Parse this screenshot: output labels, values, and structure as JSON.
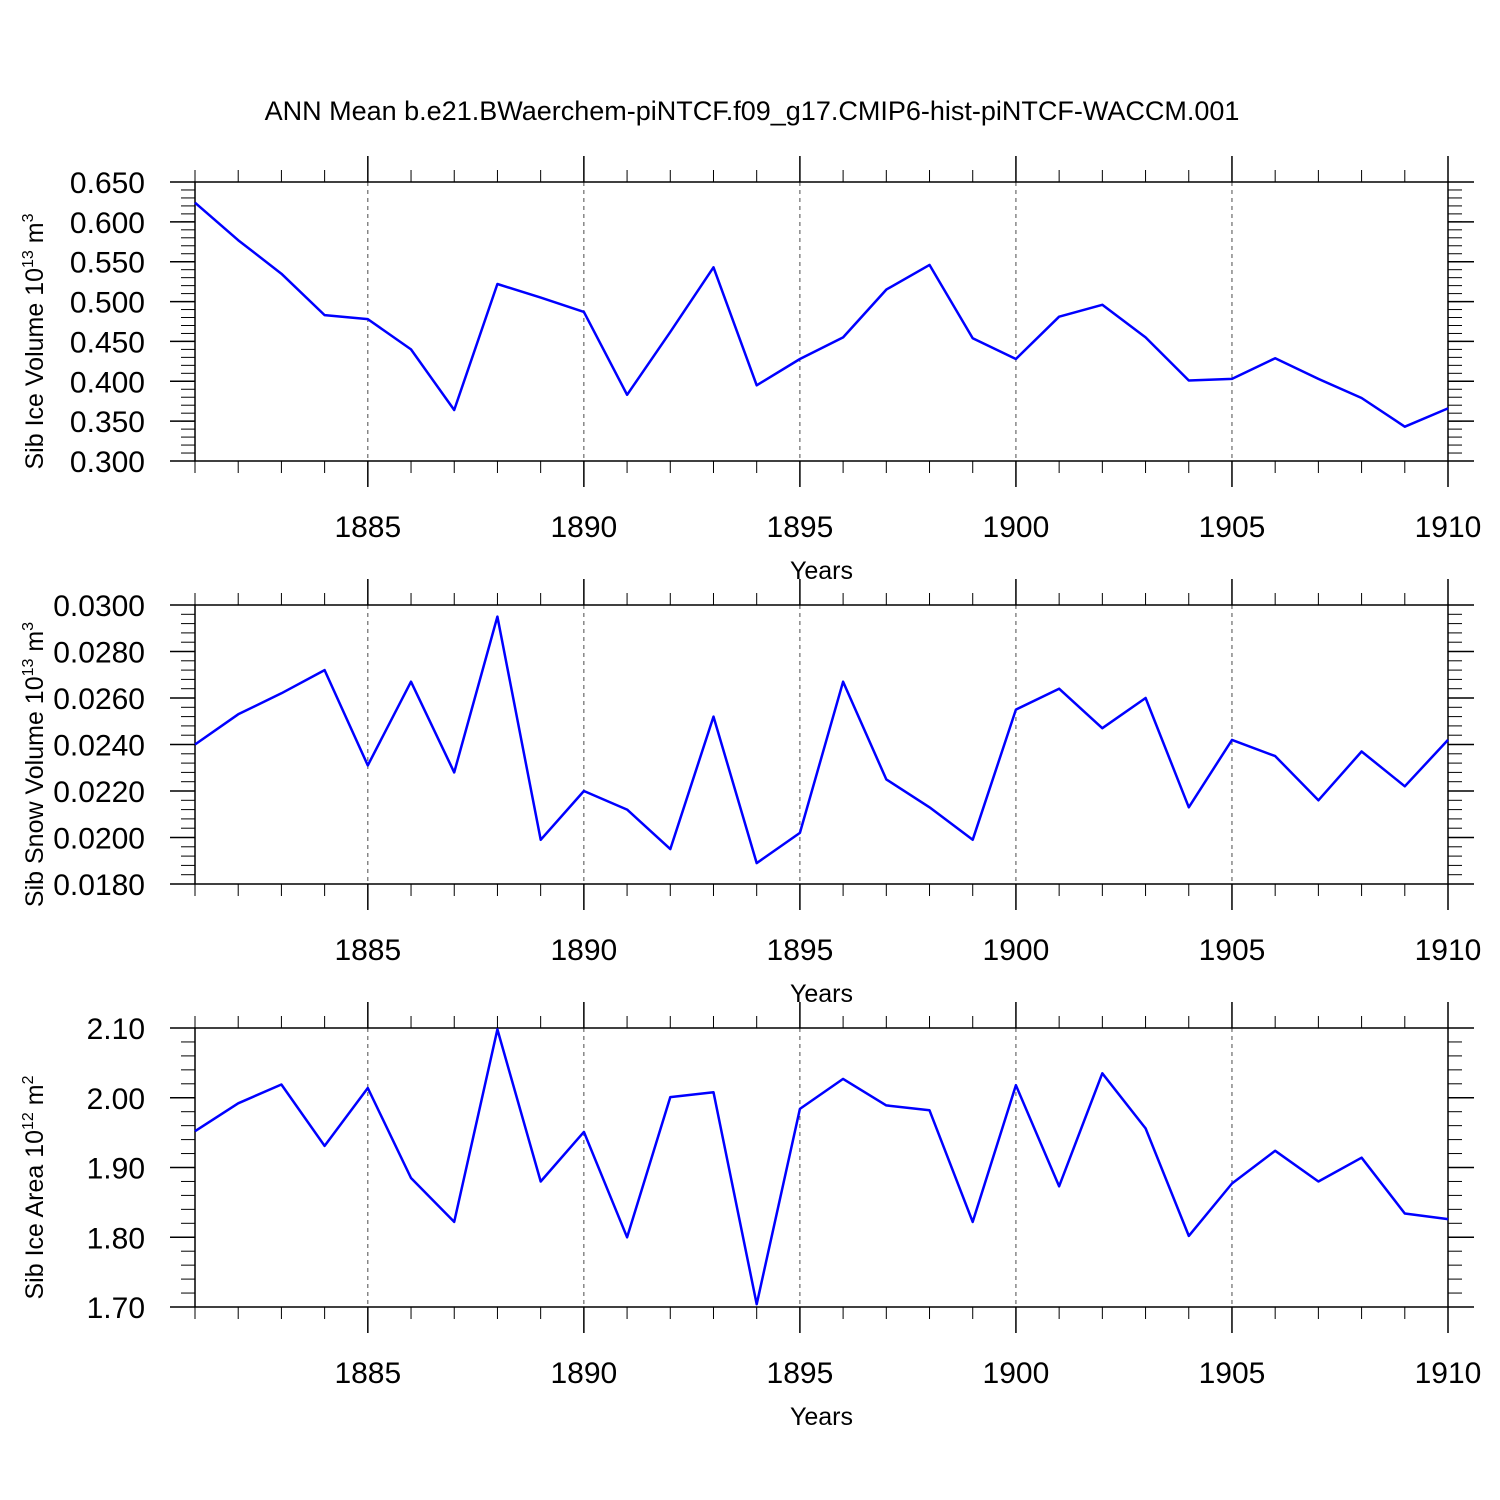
{
  "title": "ANN Mean b.e21.BWaerchem-piNTCF.f09_g17.CMIP6-hist-piNTCF-WACCM.001",
  "colors": {
    "line": "#0000ff",
    "axis": "#000000",
    "grid": "#000000"
  },
  "chart_data": [
    {
      "type": "line",
      "xlabel": "Years",
      "ylabel": {
        "prefix": "Sib Ice Volume 10",
        "exp": "13",
        "unit": " m",
        "unit_exp": "3"
      },
      "xlim": [
        1881,
        1910
      ],
      "ylim": [
        0.3,
        0.65
      ],
      "x_ticks": [
        "1885",
        "1890",
        "1895",
        "1900",
        "1905",
        "1910"
      ],
      "y_ticks": [
        "0.300",
        "0.350",
        "0.400",
        "0.450",
        "0.500",
        "0.550",
        "0.600",
        "0.650"
      ],
      "grid": "vertical dashed at major x ticks",
      "x": [
        1881,
        1882,
        1883,
        1884,
        1885,
        1886,
        1887,
        1888,
        1889,
        1890,
        1891,
        1892,
        1893,
        1894,
        1895,
        1896,
        1897,
        1898,
        1899,
        1900,
        1901,
        1902,
        1903,
        1904,
        1905,
        1906,
        1907,
        1908,
        1909,
        1910
      ],
      "values": [
        0.624,
        0.577,
        0.535,
        0.483,
        0.478,
        0.44,
        0.364,
        0.522,
        0.505,
        0.487,
        0.383,
        0.462,
        0.543,
        0.395,
        0.428,
        0.455,
        0.515,
        0.546,
        0.454,
        0.428,
        0.481,
        0.496,
        0.455,
        0.401,
        0.403,
        0.429,
        0.403,
        0.379,
        0.343,
        0.366
      ]
    },
    {
      "type": "line",
      "xlabel": "Years",
      "ylabel": {
        "prefix": "Sib Snow Volume 10",
        "exp": "13",
        "unit": " m",
        "unit_exp": "3"
      },
      "xlim": [
        1881,
        1910
      ],
      "ylim": [
        0.018,
        0.03
      ],
      "x_ticks": [
        "1885",
        "1890",
        "1895",
        "1900",
        "1905",
        "1910"
      ],
      "y_ticks": [
        "0.0180",
        "0.0200",
        "0.0220",
        "0.0240",
        "0.0260",
        "0.0280",
        "0.0300"
      ],
      "grid": "vertical dashed at major x ticks",
      "x": [
        1881,
        1882,
        1883,
        1884,
        1885,
        1886,
        1887,
        1888,
        1889,
        1890,
        1891,
        1892,
        1893,
        1894,
        1895,
        1896,
        1897,
        1898,
        1899,
        1900,
        1901,
        1902,
        1903,
        1904,
        1905,
        1906,
        1907,
        1908,
        1909,
        1910
      ],
      "values": [
        0.024,
        0.0253,
        0.0262,
        0.0272,
        0.0231,
        0.0267,
        0.0228,
        0.0295,
        0.0199,
        0.022,
        0.0212,
        0.0195,
        0.0252,
        0.0189,
        0.0202,
        0.0267,
        0.0225,
        0.0213,
        0.0199,
        0.0255,
        0.0264,
        0.0247,
        0.026,
        0.0213,
        0.0242,
        0.0235,
        0.0216,
        0.0237,
        0.0222,
        0.0242
      ]
    },
    {
      "type": "line",
      "xlabel": "Years",
      "ylabel": {
        "prefix": "Sib Ice Area 10",
        "exp": "12",
        "unit": " m",
        "unit_exp": "2"
      },
      "xlim": [
        1881,
        1910
      ],
      "ylim": [
        1.7,
        2.1
      ],
      "x_ticks": [
        "1885",
        "1890",
        "1895",
        "1900",
        "1905",
        "1910"
      ],
      "y_ticks": [
        "1.70",
        "1.80",
        "1.90",
        "2.00",
        "2.10"
      ],
      "grid": "vertical dashed at major x ticks",
      "x": [
        1881,
        1882,
        1883,
        1884,
        1885,
        1886,
        1887,
        1888,
        1889,
        1890,
        1891,
        1892,
        1893,
        1894,
        1895,
        1896,
        1897,
        1898,
        1899,
        1900,
        1901,
        1902,
        1903,
        1904,
        1905,
        1906,
        1907,
        1908,
        1909,
        1910
      ],
      "values": [
        1.952,
        1.992,
        2.019,
        1.931,
        2.014,
        1.885,
        1.822,
        2.098,
        1.88,
        1.951,
        1.8,
        2.001,
        2.008,
        1.704,
        1.984,
        2.027,
        1.989,
        1.982,
        1.822,
        2.018,
        1.873,
        2.035,
        1.956,
        1.802,
        1.877,
        1.924,
        1.88,
        1.914,
        1.834,
        1.826
      ]
    }
  ]
}
